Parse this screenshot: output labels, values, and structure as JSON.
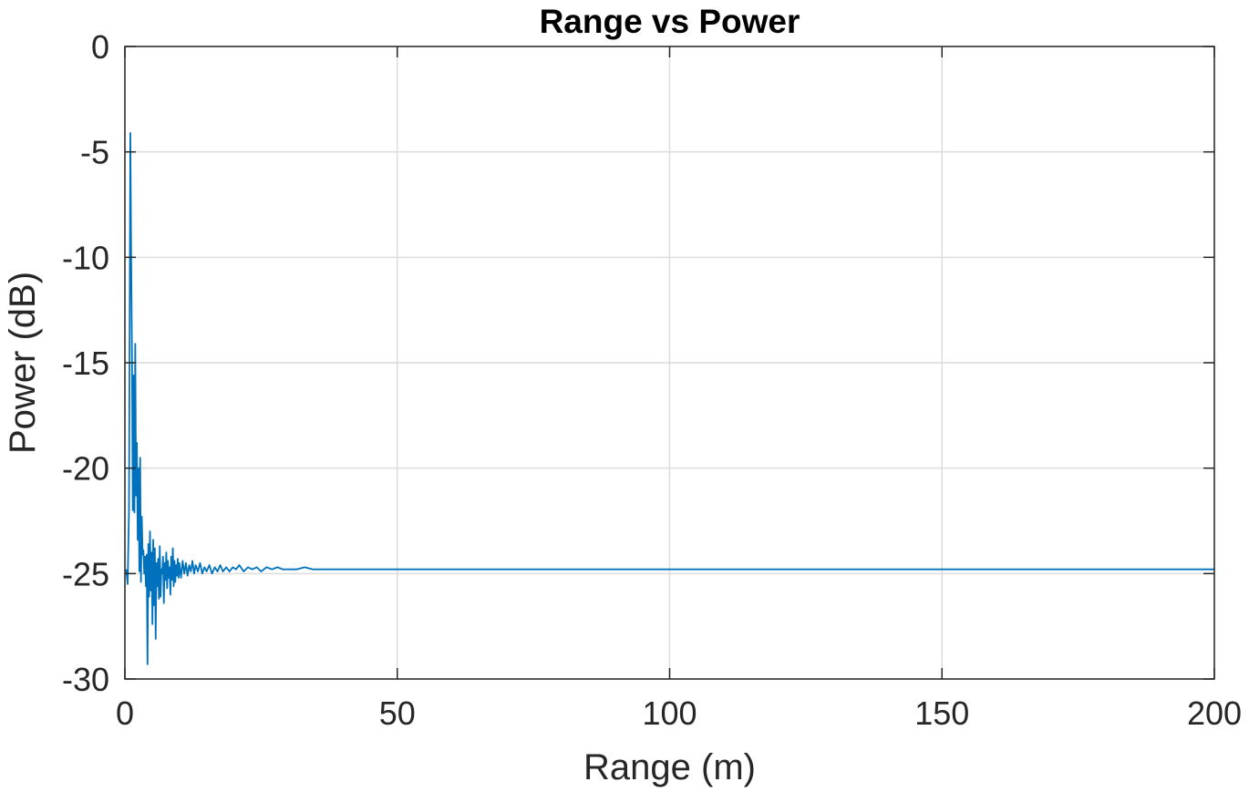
{
  "chart_data": {
    "type": "line",
    "title": "Range vs Power",
    "xlabel": "Range (m)",
    "ylabel": "Power (dB)",
    "xlim": [
      0,
      200
    ],
    "ylim": [
      -30,
      0
    ],
    "xticks": [
      0,
      50,
      100,
      150,
      200
    ],
    "yticks": [
      0,
      -5,
      -10,
      -15,
      -20,
      -25,
      -30
    ],
    "xtick_labels": [
      "0",
      "50",
      "100",
      "150",
      "200"
    ],
    "ytick_labels": [
      "0",
      "-5",
      "-10",
      "-15",
      "-20",
      "-25",
      "-30"
    ],
    "grid": true,
    "legend": "none",
    "line_color": "#0072BD",
    "series": [
      {
        "x": [
          0.25,
          0.5,
          0.75,
          1.0,
          1.15,
          1.3,
          1.45,
          1.6,
          1.75,
          1.9,
          2.05,
          2.2,
          2.35,
          2.5,
          2.65,
          2.8,
          2.95,
          3.1,
          3.25,
          3.4,
          3.55,
          3.7,
          3.85,
          4.0,
          4.15,
          4.3,
          4.45,
          4.6,
          4.75,
          4.9,
          5.05,
          5.2,
          5.35,
          5.5,
          5.65,
          5.8,
          5.95,
          6.1,
          6.25,
          6.4,
          6.55,
          6.7,
          6.85,
          7.0,
          7.15,
          7.3,
          7.45,
          7.6,
          7.75,
          7.9,
          8.05,
          8.2,
          8.35,
          8.5,
          8.65,
          8.8,
          8.95,
          9.1,
          9.25,
          9.4,
          9.55,
          9.7,
          9.85,
          10.0,
          10.3,
          10.6,
          10.9,
          11.2,
          11.5,
          11.8,
          12.1,
          12.4,
          12.7,
          13.0,
          13.4,
          13.8,
          14.2,
          14.6,
          15.0,
          15.5,
          16.0,
          16.5,
          17.0,
          17.5,
          18.0,
          18.6,
          19.2,
          19.8,
          20.4,
          21.0,
          21.8,
          22.6,
          23.4,
          24.2,
          25.0,
          26.0,
          27.0,
          28.0,
          29.0,
          30.0,
          31.5,
          33.0,
          34.5,
          36.0,
          40.0,
          60.0,
          100.0,
          150.0,
          200.0
        ],
        "y": [
          -24.8,
          -25.5,
          -22.0,
          -4.1,
          -10.0,
          -14.7,
          -22.0,
          -15.6,
          -22.1,
          -14.1,
          -21.3,
          -18.8,
          -23.4,
          -20.0,
          -24.9,
          -19.5,
          -25.4,
          -22.3,
          -24.1,
          -23.9,
          -25.0,
          -24.2,
          -25.6,
          -24.1,
          -29.3,
          -23.6,
          -26.1,
          -23.0,
          -25.8,
          -24.0,
          -27.4,
          -23.4,
          -26.5,
          -23.8,
          -28.1,
          -24.5,
          -25.6,
          -24.3,
          -26.2,
          -23.7,
          -26.1,
          -24.8,
          -25.0,
          -24.2,
          -26.4,
          -24.5,
          -25.3,
          -24.0,
          -25.7,
          -24.4,
          -25.2,
          -24.7,
          -26.0,
          -24.2,
          -25.3,
          -23.8,
          -25.6,
          -24.4,
          -25.4,
          -24.6,
          -25.1,
          -24.3,
          -25.2,
          -24.5,
          -25.2,
          -24.4,
          -25.0,
          -24.5,
          -25.1,
          -24.6,
          -24.9,
          -24.4,
          -25.0,
          -24.6,
          -24.9,
          -24.5,
          -25.0,
          -24.7,
          -24.9,
          -24.6,
          -25.0,
          -24.7,
          -24.9,
          -24.6,
          -24.9,
          -24.7,
          -24.9,
          -24.7,
          -24.8,
          -24.6,
          -24.9,
          -24.7,
          -24.8,
          -24.7,
          -24.9,
          -24.7,
          -24.8,
          -24.7,
          -24.8,
          -24.8,
          -24.8,
          -24.7,
          -24.8,
          -24.8,
          -24.8,
          -24.8,
          -24.8,
          -24.8,
          -24.8
        ]
      }
    ]
  }
}
